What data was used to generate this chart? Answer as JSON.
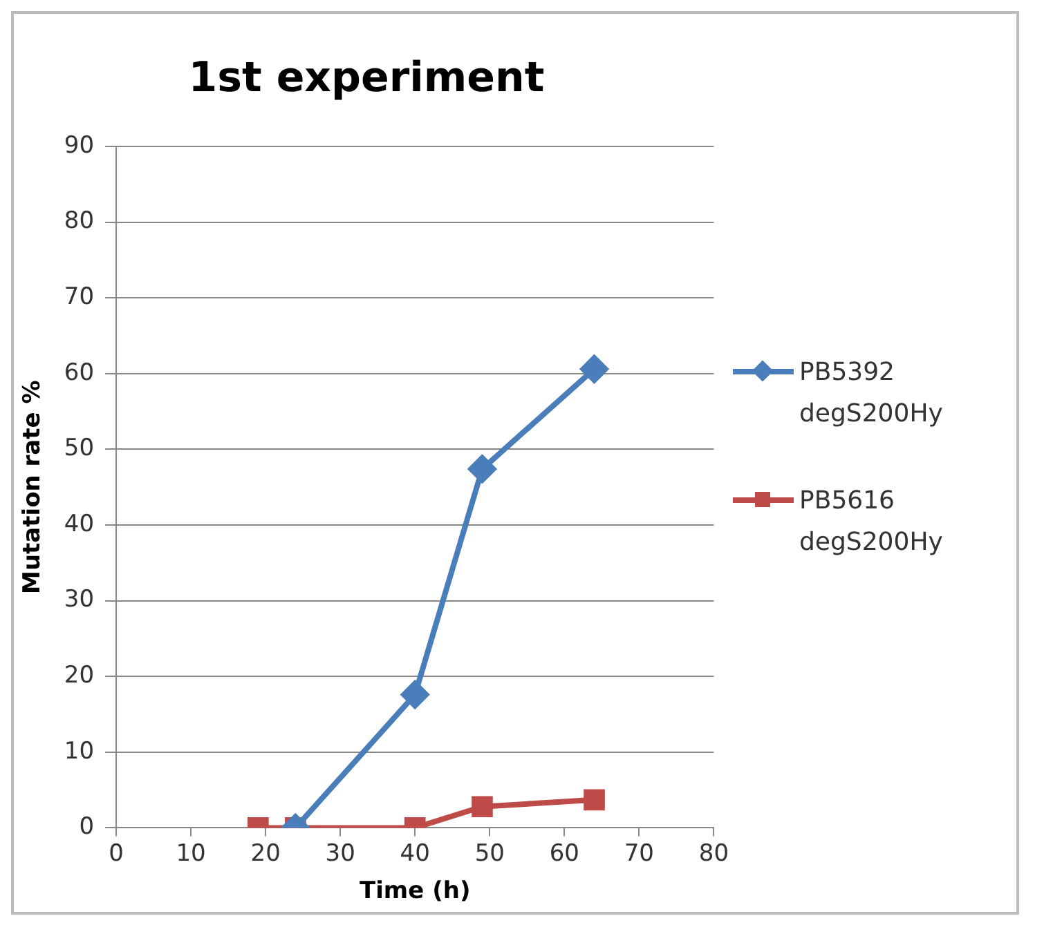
{
  "chart_data": {
    "type": "line",
    "title": "1st experiment",
    "xlabel": "Time (h)",
    "ylabel": "Mutation rate %",
    "xlim": [
      0,
      80
    ],
    "xticks": [
      0,
      10,
      20,
      30,
      40,
      50,
      60,
      70,
      80
    ],
    "ylim": [
      0,
      90
    ],
    "yticks": [
      0,
      10,
      20,
      30,
      40,
      50,
      60,
      70,
      80,
      90
    ],
    "grid": "y",
    "legend": "right",
    "line_style": "solid",
    "series": [
      {
        "name": "PB5392 degS200Hy",
        "color": "#4a7ebb",
        "marker": "diamond",
        "x": [
          24,
          40,
          49,
          64
        ],
        "values": [
          0,
          17.6,
          47.4,
          60.6
        ]
      },
      {
        "name": "PB5616 degS200Hy",
        "color": "#be4b48",
        "marker": "square",
        "x": [
          19,
          24,
          40,
          49,
          64
        ],
        "values": [
          0,
          0,
          0,
          2.8,
          3.7
        ]
      }
    ]
  }
}
